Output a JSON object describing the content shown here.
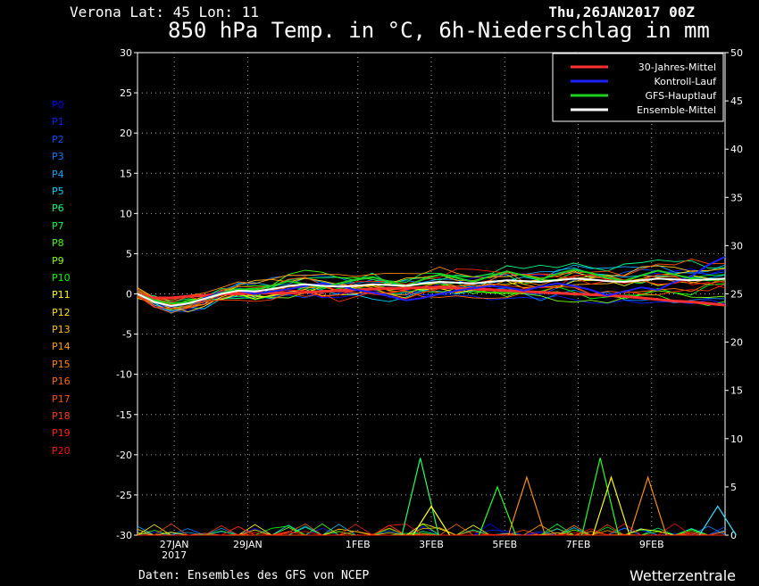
{
  "header": {
    "station": "Verona   Lat: 45 Lon: 11",
    "date": "Thu,26JAN2017 00Z",
    "title": "850 hPa Temp. in °C, 6h-Niederschlag in mm"
  },
  "footer": {
    "source": "Daten: Ensembles des GFS von NCEP",
    "brand": "Wetterzentrale"
  },
  "members": [
    {
      "label": "P0",
      "color": "#0000ff"
    },
    {
      "label": "P1",
      "color": "#0020ff"
    },
    {
      "label": "P2",
      "color": "#0050ff"
    },
    {
      "label": "P3",
      "color": "#0080ff"
    },
    {
      "label": "P4",
      "color": "#00a8ff"
    },
    {
      "label": "P5",
      "color": "#00d0ff"
    },
    {
      "label": "P6",
      "color": "#00ff80"
    },
    {
      "label": "P7",
      "color": "#00ff40"
    },
    {
      "label": "P8",
      "color": "#40ff00"
    },
    {
      "label": "P9",
      "color": "#80ff00"
    },
    {
      "label": "P10",
      "color": "#00ff00"
    },
    {
      "label": "P11",
      "color": "#ffff00"
    },
    {
      "label": "P12",
      "color": "#ffe000"
    },
    {
      "label": "P13",
      "color": "#ffc000"
    },
    {
      "label": "P14",
      "color": "#ffa000"
    },
    {
      "label": "P15",
      "color": "#ff8800"
    },
    {
      "label": "P16",
      "color": "#ff6a00"
    },
    {
      "label": "P17",
      "color": "#ff5000"
    },
    {
      "label": "P18",
      "color": "#ff3a00"
    },
    {
      "label": "P19",
      "color": "#ff2000"
    },
    {
      "label": "P20",
      "color": "#ff1000"
    }
  ],
  "chart_data": {
    "type": "line",
    "x_ticks": [
      "27JAN",
      "29JAN",
      "1FEB",
      "3FEB",
      "5FEB",
      "7FEB",
      "9FEB"
    ],
    "x_tick_day_index": [
      1,
      3,
      6,
      8,
      10,
      12,
      14
    ],
    "x_sublabel": "2017",
    "x_range_days": [
      0,
      16
    ],
    "ylim_left": [
      -30,
      30
    ],
    "y_ticks_left": [
      -30,
      -25,
      -20,
      -15,
      -10,
      -5,
      0,
      5,
      10,
      15,
      20,
      25,
      30
    ],
    "ylim_right": [
      0,
      50
    ],
    "y_ticks_right": [
      0,
      5,
      10,
      15,
      20,
      25,
      30,
      35,
      40,
      45,
      50
    ],
    "grid": true,
    "legend_position": "top-right",
    "legend": [
      {
        "name": "30-Jahres-Mittel",
        "color": "#ff3030"
      },
      {
        "name": "Kontroll-Lauf",
        "color": "#2020ff"
      },
      {
        "name": "GFS-Hauptlauf",
        "color": "#20d020"
      },
      {
        "name": "Ensemble-Mittel",
        "color": "#ffffff"
      }
    ],
    "series": [
      {
        "key": "climate",
        "color": "#ff3030",
        "values": [
          0,
          -0.5,
          -0.5,
          -0.3,
          -0.2,
          0,
          0,
          0.1,
          0.1,
          0.1,
          0.2,
          0.3,
          0.4,
          0.5,
          0.6,
          0.7,
          0.7,
          0.8,
          0.8,
          0.7,
          0.6,
          0.5,
          0.4,
          0.3,
          0.2,
          0.1,
          0,
          -0.1,
          -0.2,
          -0.3,
          -0.5,
          -0.7,
          -0.9,
          -1.0,
          -1.2,
          -1.4
        ]
      },
      {
        "key": "control",
        "color": "#2020ff",
        "values": [
          0,
          -1,
          -1.6,
          -1.2,
          -0.5,
          0.2,
          0.4,
          0,
          0.3,
          0.6,
          1.0,
          1.3,
          1.0,
          0.5,
          0.2,
          -0.3,
          -0.8,
          -0.5,
          0,
          0.4,
          0.7,
          1.0,
          0.8,
          0.4,
          0.9,
          1.3,
          1.0,
          0.5,
          -0.2,
          0.3,
          0.8,
          0.5,
          1.5,
          2.2,
          3.6,
          4.6
        ]
      },
      {
        "key": "main",
        "color": "#20d020",
        "values": [
          0,
          -0.8,
          -1.2,
          -1.0,
          -0.6,
          0.1,
          0.6,
          0.5,
          1.0,
          1.6,
          1.2,
          0.8,
          1.3,
          1.8,
          2.1,
          1.5,
          1.0,
          1.8,
          2.4,
          2.0,
          1.5,
          2.2,
          2.8,
          2.3,
          1.8,
          2.5,
          3.0,
          2.6,
          2.0,
          1.6,
          2.3,
          2.9,
          2.4,
          1.9,
          1.7,
          1.8
        ]
      },
      {
        "key": "mean",
        "color": "#ffffff",
        "values": [
          0,
          -1.0,
          -1.5,
          -1.2,
          -0.6,
          0.0,
          0.4,
          0.3,
          0.6,
          1.0,
          1.2,
          1.0,
          0.9,
          1.0,
          1.2,
          1.1,
          1.0,
          1.3,
          1.5,
          1.4,
          1.3,
          1.5,
          1.7,
          1.6,
          1.5,
          1.7,
          1.9,
          1.8,
          1.6,
          1.5,
          1.7,
          1.9,
          1.8,
          1.7,
          1.8,
          1.9
        ]
      }
    ],
    "precip_peaks": [
      {
        "day": 7.7,
        "value": 8,
        "color": "#20ff60"
      },
      {
        "day": 8.0,
        "value": 3,
        "color": "#ffff00"
      },
      {
        "day": 9.8,
        "value": 5,
        "color": "#20ff20"
      },
      {
        "day": 10.6,
        "value": 6,
        "color": "#ff9000"
      },
      {
        "day": 12.6,
        "value": 8,
        "color": "#20ff20"
      },
      {
        "day": 12.9,
        "value": 6,
        "color": "#ffff00"
      },
      {
        "day": 13.9,
        "value": 6,
        "color": "#ff9000"
      },
      {
        "day": 15.8,
        "value": 3,
        "color": "#20e0ff"
      }
    ]
  }
}
